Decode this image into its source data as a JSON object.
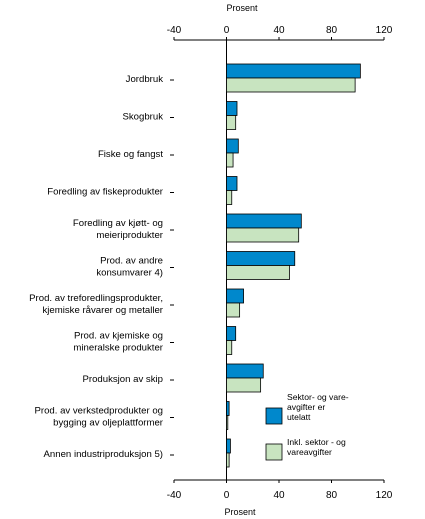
{
  "chart_data": {
    "type": "bar",
    "orientation": "horizontal",
    "title": "",
    "xlabel_top": "Prosent",
    "xlabel_bottom": "Prosent",
    "xlim": [
      -40,
      120
    ],
    "x_ticks": [
      "-40",
      "0",
      "40",
      "80",
      "120"
    ],
    "categories": [
      [
        "Jordbruk"
      ],
      [
        "Skogbruk"
      ],
      [
        "Fiske og fangst"
      ],
      [
        "Foredling av fiskeprodukter"
      ],
      [
        "Foredling av kjøtt- og",
        "meieriprodukter"
      ],
      [
        "Prod. av  andre",
        "konsumvarer 4)"
      ],
      [
        "Prod. av  treforedlingsprodukter,",
        "kjemiske råvarer og metaller"
      ],
      [
        "Prod. av kjemiske og",
        "mineralske produkter"
      ],
      [
        "Produksjon av skip"
      ],
      [
        "Prod. av verkstedprodukter og",
        "bygging av oljeplattformer"
      ],
      [
        "Annen industriproduksjon 5)"
      ]
    ],
    "series": [
      {
        "name": [
          "Sektor- og vare-",
          "avgifter er",
          "utelatt"
        ],
        "color": "#0088cc",
        "values": [
          102,
          8,
          9,
          8,
          57,
          52,
          13,
          7,
          28,
          2,
          3
        ]
      },
      {
        "name": [
          "Inkl. sektor -  og",
          "vareavgifter"
        ],
        "color": "#c8e4c0",
        "values": [
          98,
          7,
          5,
          4,
          55,
          48,
          10,
          4,
          26,
          1,
          2
        ]
      }
    ],
    "grid": false,
    "legend_position": "bottom-right"
  }
}
